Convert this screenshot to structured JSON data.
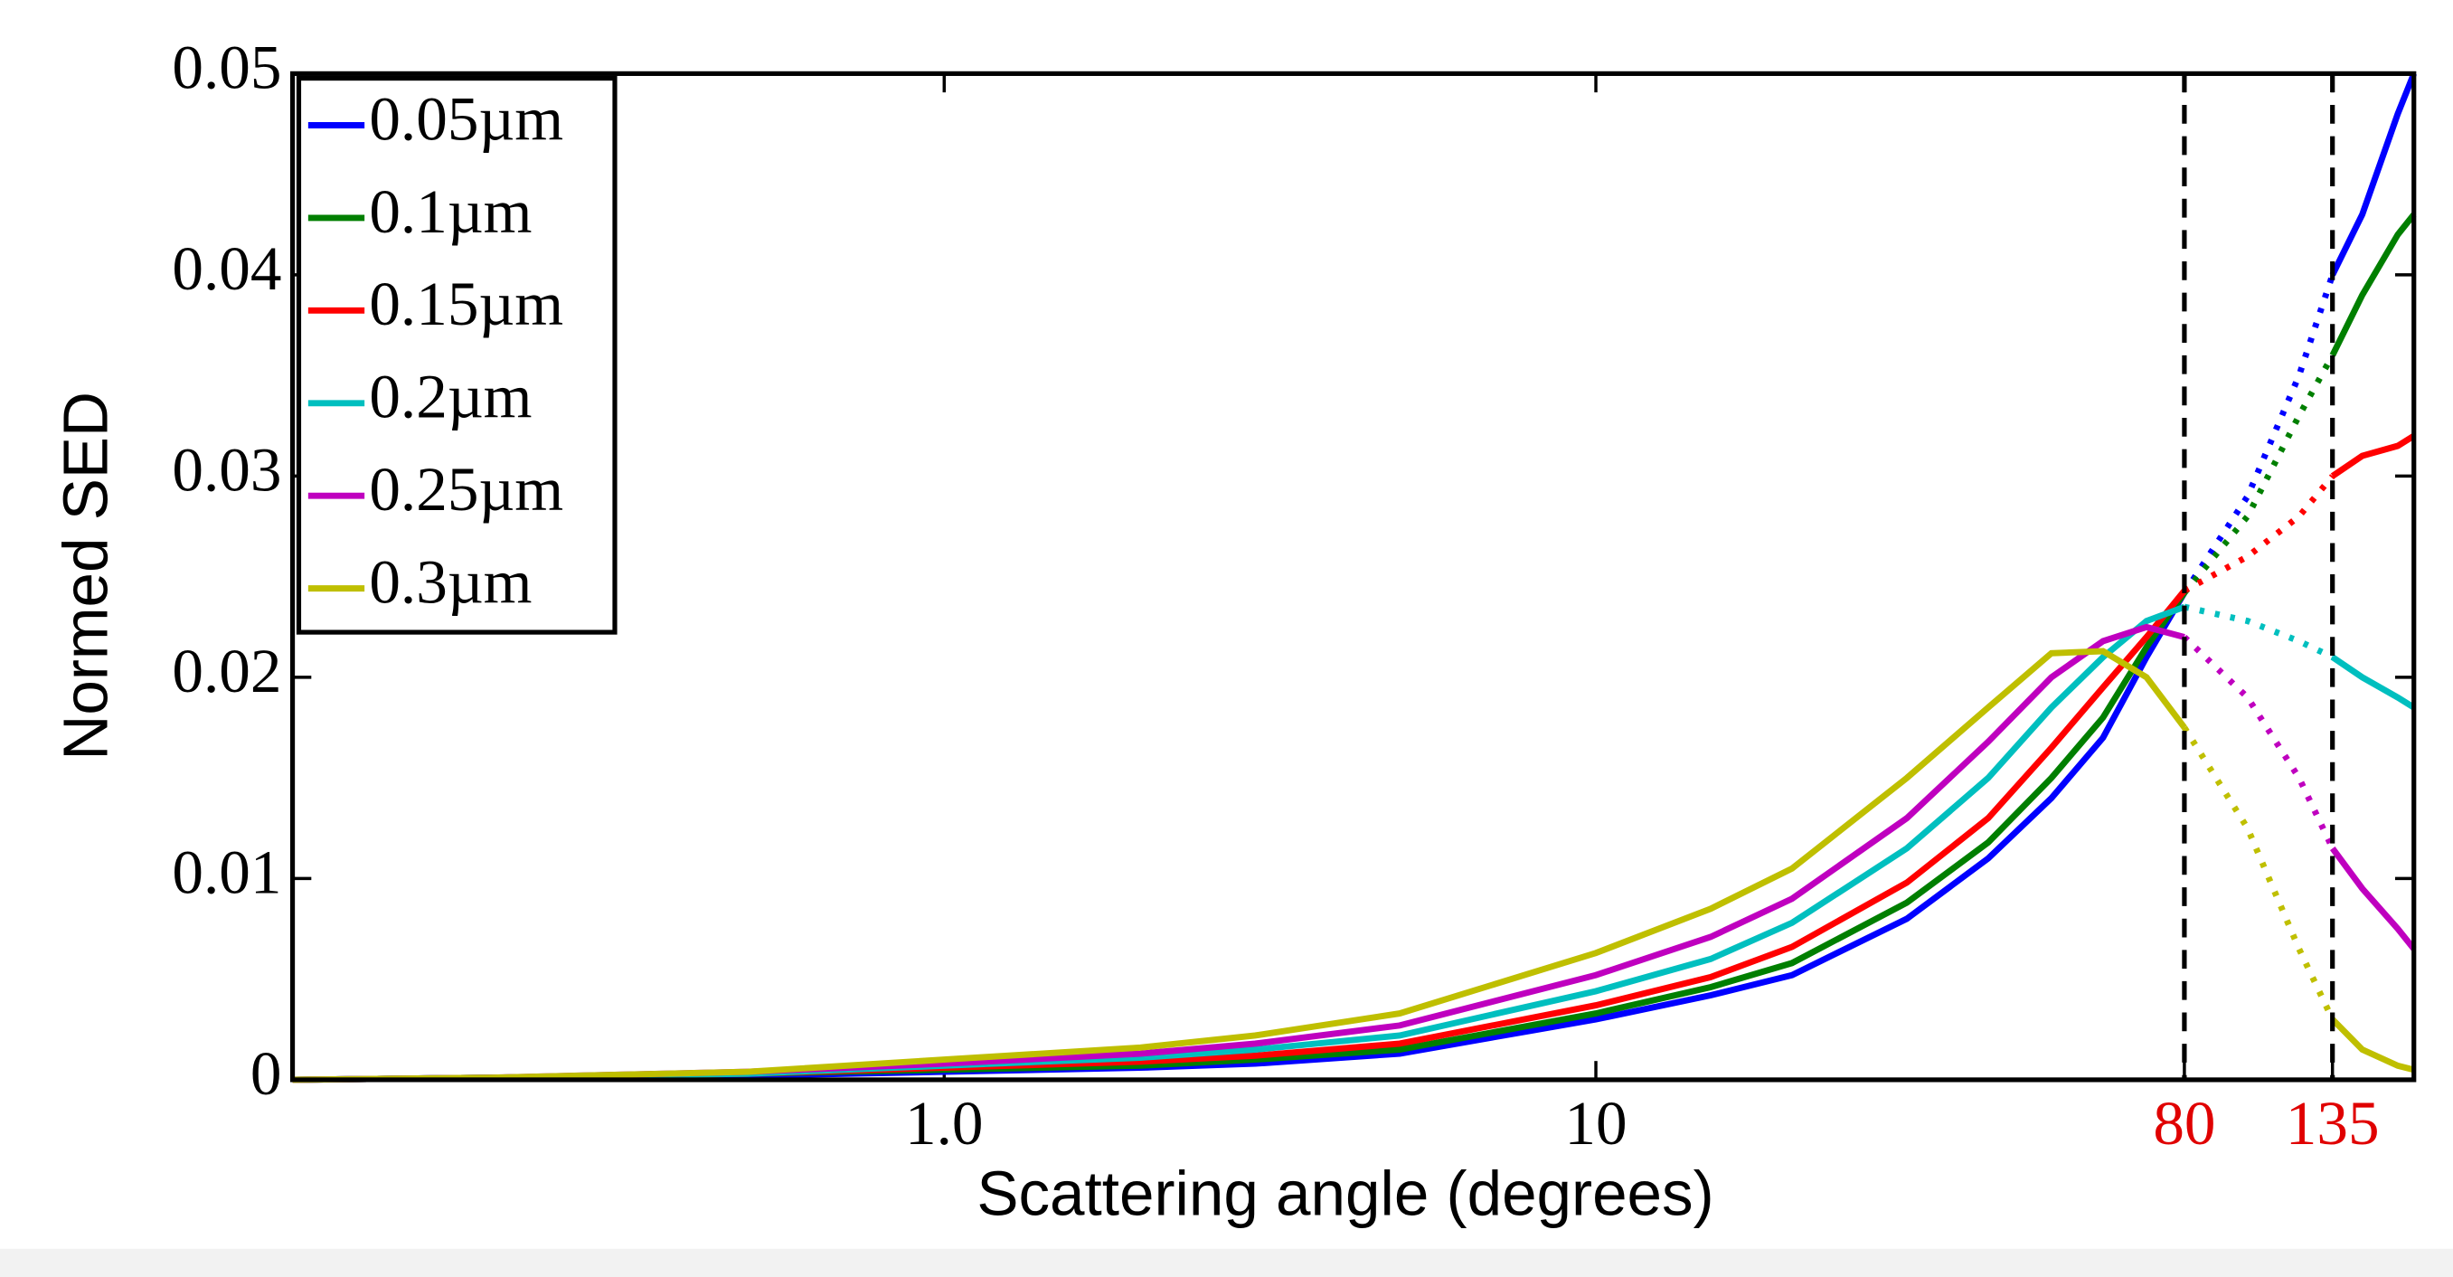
{
  "chart_data": {
    "type": "line",
    "xlabel": "Scattering angle (degrees)",
    "ylabel": "Normed SED",
    "x": [
      0.1,
      0.2,
      0.5,
      1,
      2,
      3,
      5,
      10,
      15,
      20,
      30,
      40,
      50,
      60,
      70,
      80,
      100,
      120,
      135,
      150,
      170,
      180
    ],
    "series": [
      {
        "name": "0.05µm",
        "color": "#0000ff",
        "values": [
          0,
          0.0001,
          0.0002,
          0.0004,
          0.0006,
          0.0008,
          0.0013,
          0.003,
          0.0042,
          0.0052,
          0.008,
          0.011,
          0.014,
          0.017,
          0.021,
          0.0242,
          0.029,
          0.035,
          0.04,
          0.043,
          0.048,
          0.05
        ]
      },
      {
        "name": "0.1µm",
        "color": "#007f00",
        "values": [
          0,
          0.0001,
          0.0003,
          0.0005,
          0.0007,
          0.001,
          0.0015,
          0.0033,
          0.0046,
          0.0058,
          0.0088,
          0.0118,
          0.015,
          0.018,
          0.0215,
          0.0242,
          0.028,
          0.033,
          0.036,
          0.039,
          0.042,
          0.043
        ]
      },
      {
        "name": "0.15µm",
        "color": "#ff0000",
        "values": [
          0,
          0.0001,
          0.0003,
          0.0006,
          0.0009,
          0.0012,
          0.0018,
          0.0037,
          0.0051,
          0.0066,
          0.0098,
          0.013,
          0.0165,
          0.0195,
          0.022,
          0.0243,
          0.026,
          0.028,
          0.03,
          0.031,
          0.0315,
          0.032
        ]
      },
      {
        "name": "0.2µm",
        "color": "#00bfbf",
        "values": [
          0,
          0.0001,
          0.0003,
          0.0007,
          0.0011,
          0.0015,
          0.0022,
          0.0044,
          0.006,
          0.0078,
          0.0115,
          0.015,
          0.0185,
          0.021,
          0.0228,
          0.0235,
          0.0228,
          0.0218,
          0.021,
          0.02,
          0.019,
          0.0185
        ]
      },
      {
        "name": "0.25µm",
        "color": "#bf00bf",
        "values": [
          0,
          0.0001,
          0.0004,
          0.0008,
          0.0013,
          0.0018,
          0.0027,
          0.0052,
          0.0071,
          0.009,
          0.013,
          0.0168,
          0.02,
          0.0218,
          0.0225,
          0.022,
          0.019,
          0.015,
          0.0115,
          0.0095,
          0.0075,
          0.0065
        ]
      },
      {
        "name": "0.3µm",
        "color": "#bfbf00",
        "values": [
          0,
          0.0001,
          0.0004,
          0.001,
          0.0016,
          0.0022,
          0.0033,
          0.0063,
          0.0085,
          0.0105,
          0.015,
          0.0185,
          0.0212,
          0.0213,
          0.02,
          0.0175,
          0.0125,
          0.0065,
          0.003,
          0.0015,
          0.0007,
          0.0005
        ]
      }
    ],
    "xlim": [
      0.1,
      180
    ],
    "xscale": "log",
    "xticks": [
      {
        "value": 1,
        "label": "1.0"
      },
      10,
      80,
      135
    ],
    "xtick_colors": [
      "#000000",
      "#000000",
      "#e00000",
      "#e00000"
    ],
    "ylim": [
      0,
      0.05
    ],
    "yticks": [
      0,
      0.01,
      0.02,
      0.03,
      0.04,
      0.05
    ],
    "vlines": [
      80,
      135
    ],
    "dotted_range": [
      80,
      135
    ],
    "legend": "upper left"
  }
}
